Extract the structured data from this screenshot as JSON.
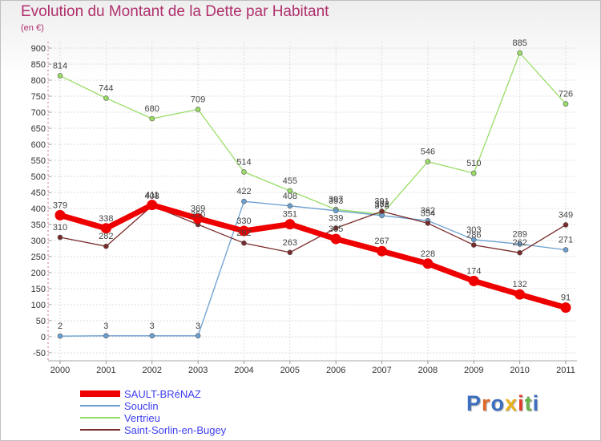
{
  "title": "Evolution du Montant de la Dette par Habitant",
  "subtitle": "(en €)",
  "brand": {
    "text": "Proxiti",
    "letter_colors": [
      "#3c6fbf",
      "#e0662a",
      "#3c6fbf",
      "#e8b21c",
      "#e03a2a",
      "#6ab04c",
      "#3c6fbf"
    ]
  },
  "chart_data": {
    "type": "line",
    "categories": [
      "2000",
      "2001",
      "2002",
      "2003",
      "2004",
      "2005",
      "2006",
      "2007",
      "2008",
      "2009",
      "2010",
      "2011"
    ],
    "y_ticks": [
      -50,
      0,
      50,
      100,
      150,
      200,
      250,
      300,
      350,
      400,
      450,
      500,
      550,
      600,
      650,
      700,
      750,
      800,
      850,
      900
    ],
    "ylim": [
      -50,
      900
    ],
    "grid": true,
    "legend_position": "bottom-left",
    "series": [
      {
        "name": "SAULT-BRéNAZ",
        "color": "#ee0000",
        "values": [
          379,
          338,
          411,
          369,
          330,
          351,
          305,
          267,
          228,
          174,
          132,
          91
        ]
      },
      {
        "name": "Souclin",
        "color": "#6a9fd0",
        "values": [
          2,
          3,
          3,
          3,
          422,
          408,
          393,
          378,
          362,
          303,
          289,
          271
        ]
      },
      {
        "name": "Vertrieu",
        "color": "#99dd66",
        "values": [
          814,
          744,
          680,
          709,
          514,
          455,
          397,
          382,
          546,
          510,
          885,
          726
        ]
      },
      {
        "name": "Saint-Sorlin-en-Bugey",
        "color": "#7a2a2a",
        "values": [
          310,
          282,
          408,
          350,
          292,
          263,
          339,
          391,
          354,
          286,
          262,
          349
        ]
      }
    ]
  }
}
